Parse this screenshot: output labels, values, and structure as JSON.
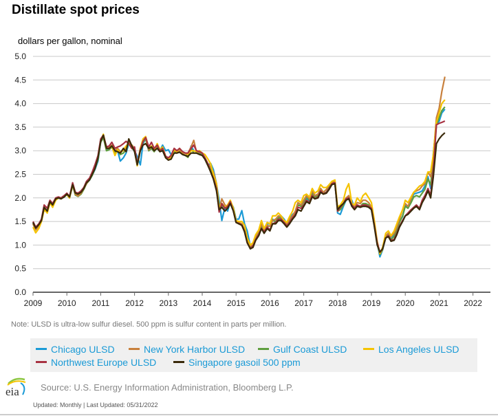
{
  "header": {
    "title": "Distillate spot prices",
    "units": "dollars per gallon, nominal"
  },
  "note": "Note: ULSD is ultra-low sulfur diesel. 500 ppm is sulfur content in parts per million.",
  "source": "Source: U.S. Energy Information Administration, Bloomberg L.P.",
  "updated": "Updated: Monthly | Last Updated: 05/31/2022",
  "logo_text": "eia",
  "chart_data": {
    "type": "line",
    "title": "Distillate spot prices",
    "ylabel": "dollars per gallon, nominal",
    "xlabel": "",
    "xlim": [
      2009.0,
      2022.55
    ],
    "ylim": [
      0,
      5
    ],
    "yticks": [
      "0.0",
      "0.5",
      "1.0",
      "1.5",
      "2.0",
      "2.5",
      "3.0",
      "3.5",
      "4.0",
      "4.5",
      "5.0"
    ],
    "xticks": [
      "2009",
      "2010",
      "2011",
      "2012",
      "2013",
      "2014",
      "2015",
      "2016",
      "2017",
      "2018",
      "2019",
      "2020",
      "2021",
      "2022"
    ],
    "grid": true,
    "legend_position": "bottom",
    "x": [
      2009.0,
      2009.08,
      2009.17,
      2009.25,
      2009.33,
      2009.42,
      2009.5,
      2009.58,
      2009.67,
      2009.75,
      2009.83,
      2009.92,
      2010.0,
      2010.08,
      2010.17,
      2010.25,
      2010.33,
      2010.42,
      2010.5,
      2010.58,
      2010.67,
      2010.75,
      2010.83,
      2010.92,
      2011.0,
      2011.08,
      2011.17,
      2011.25,
      2011.33,
      2011.42,
      2011.5,
      2011.58,
      2011.67,
      2011.75,
      2011.83,
      2011.92,
      2012.0,
      2012.08,
      2012.17,
      2012.25,
      2012.33,
      2012.42,
      2012.5,
      2012.58,
      2012.67,
      2012.75,
      2012.83,
      2012.92,
      2013.0,
      2013.08,
      2013.17,
      2013.25,
      2013.33,
      2013.42,
      2013.5,
      2013.58,
      2013.67,
      2013.75,
      2013.83,
      2013.92,
      2014.0,
      2014.08,
      2014.17,
      2014.25,
      2014.33,
      2014.42,
      2014.5,
      2014.58,
      2014.67,
      2014.75,
      2014.83,
      2014.92,
      2015.0,
      2015.08,
      2015.17,
      2015.25,
      2015.33,
      2015.42,
      2015.5,
      2015.58,
      2015.67,
      2015.75,
      2015.83,
      2015.92,
      2016.0,
      2016.08,
      2016.17,
      2016.25,
      2016.33,
      2016.42,
      2016.5,
      2016.58,
      2016.67,
      2016.75,
      2016.83,
      2016.92,
      2017.0,
      2017.08,
      2017.17,
      2017.25,
      2017.33,
      2017.42,
      2017.5,
      2017.58,
      2017.67,
      2017.75,
      2017.83,
      2017.92,
      2018.0,
      2018.08,
      2018.17,
      2018.25,
      2018.33,
      2018.42,
      2018.5,
      2018.58,
      2018.67,
      2018.75,
      2018.83,
      2018.92,
      2019.0,
      2019.08,
      2019.17,
      2019.25,
      2019.33,
      2019.42,
      2019.5,
      2019.58,
      2019.67,
      2019.75,
      2019.83,
      2019.92,
      2020.0,
      2020.08,
      2020.17,
      2020.25,
      2020.33,
      2020.42,
      2020.5,
      2020.58,
      2020.67,
      2020.75,
      2020.83,
      2020.92,
      2021.0,
      2021.08,
      2021.17,
      2021.25,
      2021.33,
      2021.42,
      2021.5,
      2021.58,
      2021.67,
      2021.75,
      2021.83,
      2021.92,
      2022.0,
      2022.08,
      2022.17,
      2022.25,
      2022.33
    ],
    "series": [
      {
        "name": "Chicago ULSD",
        "color": "#1a9ad6",
        "values": [
          1.48,
          1.35,
          1.42,
          1.52,
          1.78,
          1.72,
          1.93,
          1.85,
          1.98,
          2.0,
          1.99,
          2.02,
          2.07,
          2.0,
          2.27,
          2.08,
          2.05,
          2.1,
          2.2,
          2.32,
          2.38,
          2.48,
          2.6,
          2.78,
          3.2,
          3.33,
          3.02,
          3.05,
          3.1,
          2.95,
          3.0,
          2.78,
          2.85,
          2.95,
          3.15,
          3.05,
          3.0,
          2.88,
          2.7,
          3.15,
          3.25,
          3.0,
          3.05,
          3.0,
          3.08,
          3.0,
          3.12,
          3.0,
          3.02,
          2.92,
          3.0,
          2.95,
          3.0,
          2.92,
          2.9,
          2.88,
          3.1,
          3.0,
          2.98,
          2.95,
          2.92,
          2.82,
          2.7,
          2.73,
          2.6,
          2.3,
          1.95,
          1.52,
          1.8,
          1.72,
          1.92,
          1.8,
          1.55,
          1.55,
          1.73,
          1.45,
          1.3,
          0.98,
          0.97,
          1.15,
          1.25,
          1.4,
          1.35,
          1.45,
          1.45,
          1.55,
          1.48,
          1.6,
          1.62,
          1.55,
          1.45,
          1.55,
          1.65,
          1.7,
          1.9,
          1.85,
          1.92,
          2.0,
          1.92,
          2.12,
          2.02,
          2.08,
          2.2,
          2.1,
          2.12,
          2.22,
          2.32,
          2.36,
          1.68,
          1.65,
          1.82,
          1.95,
          2.02,
          1.95,
          1.78,
          1.85,
          1.8,
          1.85,
          1.85,
          1.8,
          1.75,
          1.45,
          1.05,
          0.75,
          0.9,
          1.15,
          1.25,
          1.12,
          1.22,
          1.35,
          1.5,
          1.6,
          1.85,
          1.8,
          1.95,
          2.08,
          2.1,
          2.12,
          2.15,
          2.25,
          2.45,
          2.2,
          2.95,
          3.58,
          3.62,
          3.8,
          3.88
        ]
      },
      {
        "name": "New York Harbor ULSD",
        "color": "#c8803c",
        "values": [
          1.45,
          1.32,
          1.4,
          1.52,
          1.78,
          1.7,
          1.93,
          1.82,
          1.97,
          2.0,
          1.99,
          2.02,
          2.08,
          2.0,
          2.28,
          2.08,
          2.04,
          2.1,
          2.2,
          2.3,
          2.4,
          2.5,
          2.65,
          2.88,
          3.22,
          3.33,
          3.05,
          3.08,
          3.12,
          3.0,
          3.05,
          2.98,
          3.0,
          3.08,
          3.18,
          3.12,
          3.05,
          2.72,
          3.05,
          3.2,
          3.28,
          3.02,
          3.08,
          3.0,
          3.12,
          3.0,
          3.05,
          2.85,
          2.85,
          2.9,
          3.02,
          2.97,
          3.0,
          2.95,
          2.9,
          2.95,
          3.08,
          3.22,
          2.98,
          2.97,
          2.95,
          2.85,
          2.72,
          2.65,
          2.55,
          2.3,
          1.75,
          1.98,
          1.85,
          1.82,
          1.92,
          1.75,
          1.5,
          1.48,
          1.45,
          1.32,
          1.1,
          0.98,
          1.0,
          1.18,
          1.28,
          1.45,
          1.3,
          1.42,
          1.4,
          1.52,
          1.55,
          1.62,
          1.6,
          1.5,
          1.45,
          1.55,
          1.62,
          1.72,
          1.9,
          1.85,
          1.95,
          2.05,
          1.98,
          2.15,
          2.05,
          2.08,
          2.2,
          2.12,
          2.18,
          2.28,
          2.32,
          2.35,
          1.75,
          1.8,
          1.88,
          2.0,
          2.05,
          1.85,
          1.8,
          1.9,
          1.88,
          1.95,
          1.95,
          1.9,
          1.8,
          1.48,
          1.05,
          0.82,
          0.92,
          1.2,
          1.25,
          1.18,
          1.25,
          1.38,
          1.55,
          1.75,
          1.88,
          1.82,
          1.98,
          2.12,
          2.15,
          2.18,
          2.25,
          2.3,
          2.55,
          2.45,
          2.9,
          3.7,
          3.9,
          4.25,
          4.57
        ]
      },
      {
        "name": "Gulf Coast ULSD",
        "color": "#5e9e3e",
        "values": [
          1.45,
          1.32,
          1.4,
          1.52,
          1.78,
          1.7,
          1.93,
          1.82,
          1.97,
          2.0,
          1.99,
          2.02,
          2.07,
          2.0,
          2.27,
          2.06,
          2.03,
          2.08,
          2.18,
          2.3,
          2.38,
          2.48,
          2.62,
          2.82,
          3.18,
          3.28,
          3.0,
          3.02,
          3.08,
          2.95,
          3.02,
          2.92,
          2.95,
          3.02,
          3.18,
          3.08,
          3.0,
          2.7,
          3.0,
          3.18,
          3.25,
          3.0,
          3.05,
          2.98,
          3.08,
          2.98,
          3.05,
          2.85,
          2.82,
          2.88,
          3.0,
          2.95,
          2.97,
          2.92,
          2.9,
          2.86,
          3.05,
          2.95,
          2.95,
          2.95,
          2.92,
          2.83,
          2.7,
          2.62,
          2.45,
          2.25,
          1.75,
          1.85,
          1.78,
          1.8,
          1.9,
          1.72,
          1.48,
          1.46,
          1.42,
          1.3,
          1.08,
          0.95,
          0.98,
          1.15,
          1.25,
          1.42,
          1.3,
          1.4,
          1.4,
          1.52,
          1.5,
          1.58,
          1.58,
          1.5,
          1.42,
          1.52,
          1.62,
          1.7,
          1.85,
          1.82,
          1.92,
          2.02,
          1.95,
          2.1,
          2.02,
          2.05,
          2.18,
          2.1,
          2.12,
          2.22,
          2.32,
          2.34,
          1.72,
          1.75,
          1.85,
          1.97,
          2.02,
          1.85,
          1.78,
          1.85,
          1.82,
          1.88,
          1.88,
          1.85,
          1.78,
          1.45,
          1.03,
          0.8,
          0.9,
          1.18,
          1.22,
          1.12,
          1.18,
          1.32,
          1.48,
          1.62,
          1.82,
          1.78,
          1.9,
          2.02,
          2.05,
          2.02,
          2.1,
          2.18,
          2.4,
          2.28,
          2.8,
          3.55,
          3.7,
          3.85,
          3.93
        ]
      },
      {
        "name": "Los Angeles ULSD",
        "color": "#f5c300",
        "values": [
          1.38,
          1.26,
          1.35,
          1.5,
          1.75,
          1.68,
          1.9,
          1.8,
          1.95,
          2.0,
          1.98,
          2.03,
          2.07,
          2.0,
          2.27,
          2.1,
          2.08,
          2.12,
          2.22,
          2.32,
          2.4,
          2.5,
          2.65,
          2.85,
          3.22,
          3.35,
          3.05,
          3.05,
          3.1,
          2.9,
          3.02,
          2.95,
          3.02,
          3.1,
          3.15,
          3.05,
          3.02,
          2.68,
          3.05,
          3.25,
          3.3,
          3.05,
          3.1,
          3.02,
          3.15,
          3.02,
          3.08,
          2.88,
          2.82,
          2.85,
          3.02,
          2.98,
          3.05,
          2.97,
          2.95,
          2.92,
          3.0,
          3.0,
          2.98,
          3.0,
          2.95,
          2.92,
          2.82,
          2.72,
          2.5,
          2.3,
          1.8,
          1.88,
          1.8,
          1.85,
          1.95,
          1.78,
          1.52,
          1.5,
          1.5,
          1.42,
          1.15,
          1.0,
          1.05,
          1.22,
          1.32,
          1.52,
          1.35,
          1.48,
          1.45,
          1.62,
          1.62,
          1.68,
          1.62,
          1.52,
          1.48,
          1.6,
          1.72,
          1.9,
          1.95,
          1.9,
          2.05,
          2.08,
          2.02,
          2.2,
          2.1,
          2.15,
          2.28,
          2.22,
          2.22,
          2.28,
          2.35,
          2.38,
          1.8,
          1.85,
          1.95,
          2.18,
          2.3,
          1.88,
          1.85,
          2.0,
          1.92,
          2.05,
          2.1,
          2.0,
          1.9,
          1.55,
          1.08,
          0.82,
          0.95,
          1.25,
          1.3,
          1.2,
          1.3,
          1.45,
          1.6,
          1.75,
          1.95,
          1.9,
          2.02,
          2.12,
          2.18,
          2.25,
          2.28,
          2.35,
          2.55,
          2.55,
          2.92,
          3.6,
          3.8,
          4.0,
          4.08
        ]
      },
      {
        "name": "Northwest Europe ULSD",
        "color": "#a73242",
        "values": [
          1.5,
          1.38,
          1.45,
          1.55,
          1.85,
          1.78,
          1.95,
          1.88,
          2.0,
          2.02,
          2.0,
          2.05,
          2.1,
          2.03,
          2.32,
          2.12,
          2.1,
          2.15,
          2.22,
          2.35,
          2.42,
          2.55,
          2.7,
          2.9,
          3.25,
          3.33,
          3.08,
          3.1,
          3.18,
          3.05,
          3.08,
          3.1,
          3.15,
          3.2,
          3.15,
          3.05,
          3.08,
          2.72,
          3.02,
          3.2,
          3.28,
          3.08,
          3.18,
          3.05,
          3.12,
          3.0,
          3.05,
          2.88,
          2.85,
          2.9,
          3.05,
          3.0,
          3.05,
          2.98,
          2.95,
          2.95,
          3.05,
          3.12,
          3.0,
          2.98,
          2.95,
          2.85,
          2.72,
          2.55,
          2.42,
          2.2,
          1.7,
          1.88,
          1.78,
          1.82,
          1.92,
          1.72,
          1.48,
          1.46,
          1.42,
          1.3,
          1.05,
          0.93,
          0.98,
          1.12,
          1.22,
          1.35,
          1.28,
          1.38,
          1.32,
          1.45,
          1.48,
          1.55,
          1.55,
          1.48,
          1.4,
          1.48,
          1.58,
          1.65,
          1.8,
          1.78,
          1.85,
          1.95,
          1.9,
          2.05,
          1.98,
          2.02,
          2.15,
          2.08,
          2.12,
          2.2,
          2.3,
          2.32,
          1.72,
          1.8,
          1.88,
          1.98,
          2.0,
          1.85,
          1.78,
          1.85,
          1.82,
          1.85,
          1.85,
          1.82,
          1.78,
          1.45,
          1.05,
          0.85,
          0.92,
          1.15,
          1.2,
          1.1,
          1.12,
          1.25,
          1.4,
          1.52,
          1.62,
          1.68,
          1.75,
          1.8,
          1.85,
          1.78,
          1.95,
          2.05,
          2.2,
          2.05,
          2.6,
          3.55,
          3.58,
          3.6,
          3.63
        ]
      },
      {
        "name": "Singapore gasoil 500 ppm",
        "color": "#3a2a0a",
        "values": [
          1.48,
          1.36,
          1.43,
          1.52,
          1.8,
          1.72,
          1.92,
          1.85,
          1.98,
          2.0,
          1.98,
          2.02,
          2.08,
          2.02,
          2.28,
          2.1,
          2.08,
          2.12,
          2.2,
          2.32,
          2.38,
          2.5,
          2.62,
          2.85,
          3.2,
          3.33,
          3.05,
          3.05,
          3.1,
          3.0,
          2.98,
          2.95,
          3.05,
          2.98,
          3.25,
          3.1,
          2.98,
          2.7,
          3.0,
          3.12,
          3.15,
          3.05,
          3.08,
          3.0,
          3.05,
          2.98,
          3.0,
          2.85,
          2.8,
          2.82,
          2.95,
          2.95,
          2.97,
          2.92,
          2.9,
          2.88,
          2.95,
          2.95,
          2.95,
          2.92,
          2.9,
          2.82,
          2.68,
          2.55,
          2.4,
          2.15,
          1.75,
          1.8,
          1.72,
          1.78,
          1.88,
          1.72,
          1.48,
          1.45,
          1.42,
          1.28,
          1.05,
          0.92,
          0.95,
          1.1,
          1.2,
          1.35,
          1.25,
          1.35,
          1.3,
          1.45,
          1.45,
          1.52,
          1.52,
          1.45,
          1.38,
          1.45,
          1.55,
          1.62,
          1.75,
          1.72,
          1.82,
          1.92,
          1.88,
          2.02,
          1.98,
          2.0,
          2.12,
          2.08,
          2.1,
          2.18,
          2.28,
          2.3,
          1.75,
          1.82,
          1.88,
          1.95,
          1.98,
          1.82,
          1.75,
          1.82,
          1.8,
          1.82,
          1.82,
          1.8,
          1.75,
          1.42,
          1.0,
          0.85,
          0.92,
          1.15,
          1.18,
          1.08,
          1.1,
          1.22,
          1.38,
          1.5,
          1.62,
          1.65,
          1.72,
          1.78,
          1.82,
          1.75,
          1.9,
          2.0,
          2.15,
          2.0,
          2.45,
          3.15,
          3.25,
          3.32,
          3.38
        ]
      }
    ]
  }
}
